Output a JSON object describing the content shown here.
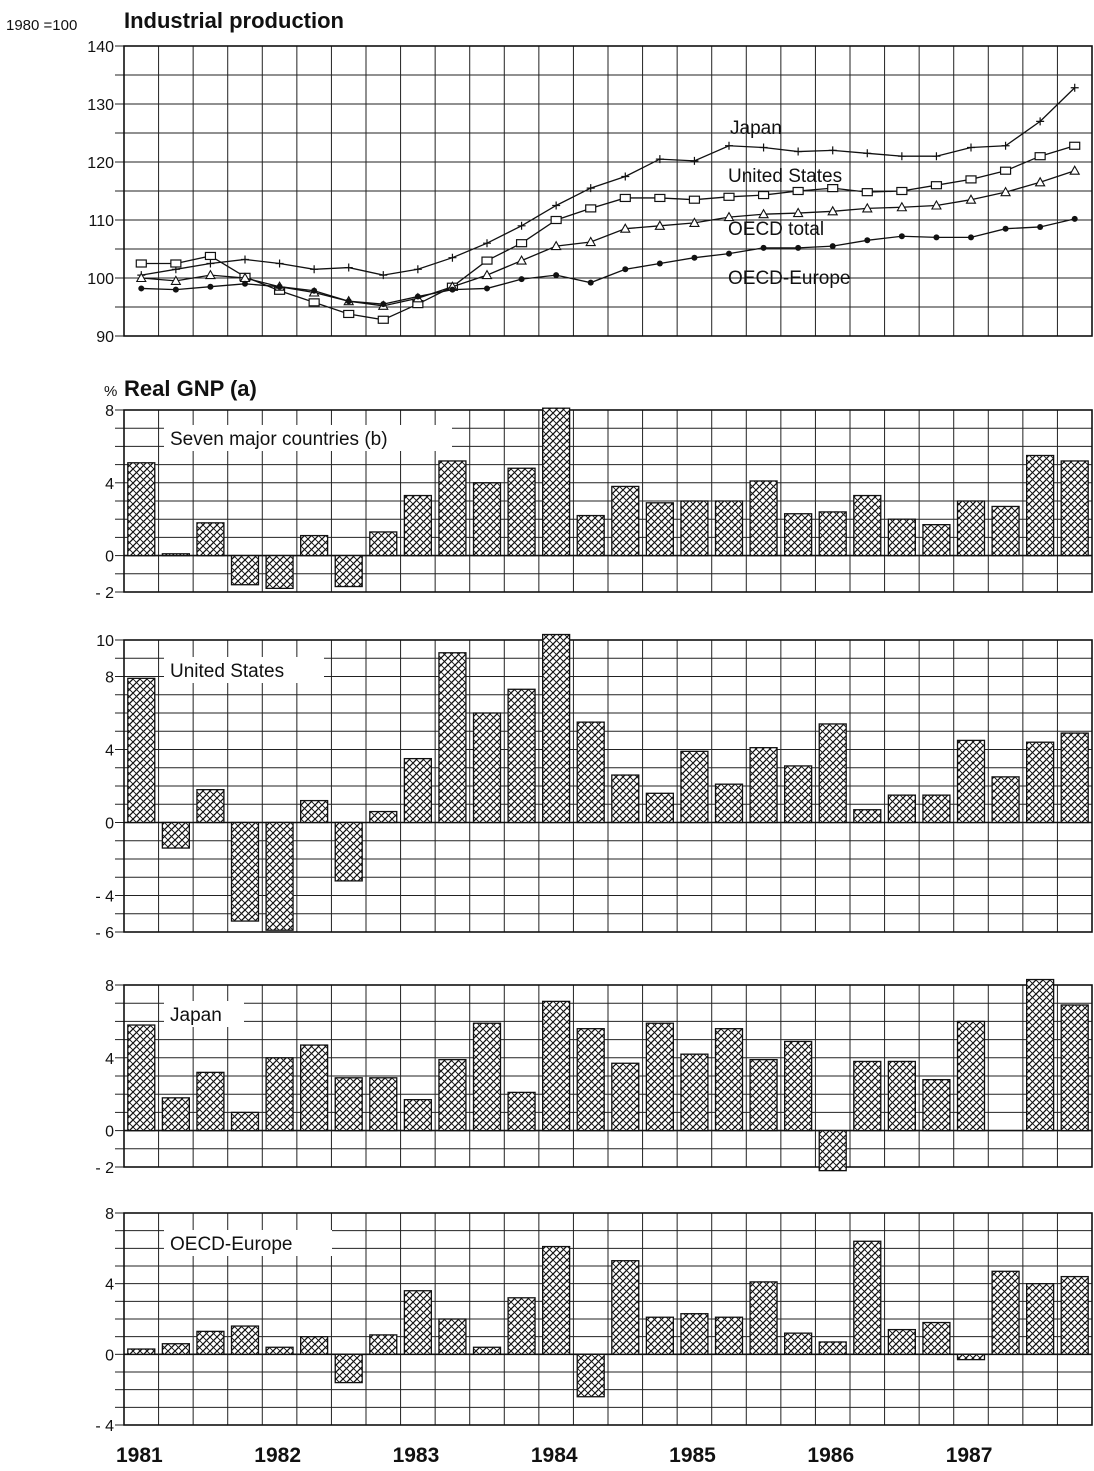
{
  "chart_data": [
    {
      "type": "line",
      "id": "industrial",
      "title": "Industrial production",
      "unit_label": "1980 =100",
      "ylim": [
        90,
        140
      ],
      "yticks": [
        90,
        100,
        110,
        120,
        130,
        140
      ],
      "x_tick_labels": [
        "1981",
        "1982",
        "1983",
        "1984",
        "1985",
        "1986",
        "1987"
      ],
      "periods": 28,
      "grid": true,
      "series": [
        {
          "name": "Japan",
          "marker": "plus",
          "values": [
            100.5,
            101.5,
            102.5,
            103.2,
            102.5,
            101.5,
            101.8,
            100.5,
            101.5,
            103.5,
            106.0,
            109.0,
            112.5,
            115.5,
            117.5,
            120.5,
            120.2,
            122.8,
            122.5,
            121.8,
            122.0,
            121.5,
            121.0,
            121.0,
            122.5,
            122.8,
            127.0,
            132.8
          ]
        },
        {
          "name": "United States",
          "marker": "square",
          "values": [
            102.5,
            102.5,
            103.8,
            100.2,
            97.8,
            95.8,
            93.8,
            92.8,
            95.5,
            98.5,
            103.0,
            106.0,
            110.0,
            112.0,
            113.8,
            113.8,
            113.5,
            114.0,
            114.3,
            115.0,
            115.5,
            114.8,
            115.0,
            116.0,
            117.0,
            118.5,
            121.0,
            122.8
          ]
        },
        {
          "name": "OECD total",
          "marker": "triangle",
          "values": [
            100.0,
            99.5,
            100.5,
            100.0,
            98.5,
            97.5,
            96.0,
            95.2,
            96.5,
            98.5,
            100.5,
            103.0,
            105.5,
            106.2,
            108.5,
            109.0,
            109.5,
            110.5,
            111.0,
            111.2,
            111.5,
            112.0,
            112.2,
            112.5,
            113.5,
            114.8,
            116.5,
            118.5
          ]
        },
        {
          "name": "OECD-Europe",
          "marker": "dot",
          "values": [
            98.2,
            98.0,
            98.5,
            99.0,
            98.5,
            97.8,
            96.0,
            95.5,
            96.8,
            98.0,
            98.2,
            99.8,
            100.5,
            99.2,
            101.5,
            102.5,
            103.5,
            104.2,
            105.2,
            105.2,
            105.5,
            106.5,
            107.2,
            107.0,
            107.0,
            108.5,
            108.8,
            110.2
          ]
        }
      ]
    },
    {
      "type": "bar",
      "id": "seven",
      "title": "Real GNP (a)",
      "unit_label": "%",
      "label": "Seven major countries (b)",
      "ylim": [
        -2,
        8
      ],
      "yticks": [
        -2,
        0,
        4,
        8
      ],
      "x_tick_labels": [
        "1981",
        "1982",
        "1983",
        "1984",
        "1985",
        "1986",
        "1987"
      ],
      "grid": true,
      "values": [
        5.1,
        0.1,
        1.8,
        -1.6,
        -1.8,
        1.1,
        -1.7,
        1.3,
        3.3,
        5.2,
        4.0,
        4.8,
        8.1,
        2.2,
        3.8,
        2.9,
        3.0,
        3.0,
        4.1,
        2.3,
        2.4,
        3.3,
        2.0,
        1.7,
        3.0,
        2.7,
        5.5,
        5.2
      ]
    },
    {
      "type": "bar",
      "id": "us",
      "label": "United States",
      "ylim": [
        -6,
        10
      ],
      "yticks": [
        -6,
        -4,
        0,
        4,
        8,
        10
      ],
      "x_tick_labels": [
        "1981",
        "1982",
        "1983",
        "1984",
        "1985",
        "1986",
        "1987"
      ],
      "grid": true,
      "values": [
        7.9,
        -1.4,
        1.8,
        -5.4,
        -5.9,
        1.2,
        -3.2,
        0.6,
        3.5,
        9.3,
        6.0,
        7.3,
        10.3,
        5.5,
        2.6,
        1.6,
        3.9,
        2.1,
        4.1,
        3.1,
        5.4,
        0.7,
        1.5,
        1.5,
        4.5,
        2.5,
        4.4,
        4.9
      ]
    },
    {
      "type": "bar",
      "id": "japan",
      "label": "Japan",
      "ylim": [
        -2,
        8
      ],
      "yticks": [
        -2,
        0,
        4,
        8
      ],
      "x_tick_labels": [
        "1981",
        "1982",
        "1983",
        "1984",
        "1985",
        "1986",
        "1987"
      ],
      "grid": true,
      "values": [
        5.8,
        1.8,
        3.2,
        1.0,
        4.0,
        4.7,
        2.9,
        2.9,
        1.7,
        3.9,
        5.9,
        2.1,
        7.1,
        5.6,
        3.7,
        5.9,
        4.2,
        5.6,
        3.9,
        4.9,
        -2.2,
        3.8,
        3.8,
        2.8,
        6.0,
        0,
        8.3,
        6.9
      ]
    },
    {
      "type": "bar",
      "id": "europe",
      "label": "OECD-Europe",
      "ylim": [
        -4,
        8
      ],
      "yticks": [
        -4,
        0,
        4,
        8
      ],
      "x_tick_labels": [
        "1981",
        "1982",
        "1983",
        "1984",
        "1985",
        "1986",
        "1987"
      ],
      "grid": true,
      "values": [
        0.3,
        0.6,
        1.3,
        1.6,
        0.4,
        1.0,
        -1.6,
        1.1,
        3.6,
        2.0,
        0.4,
        3.2,
        6.1,
        -2.4,
        5.3,
        2.1,
        2.3,
        2.1,
        4.1,
        1.2,
        0.7,
        6.4,
        1.4,
        1.8,
        -0.3,
        4.7,
        4.0,
        4.4
      ]
    }
  ]
}
